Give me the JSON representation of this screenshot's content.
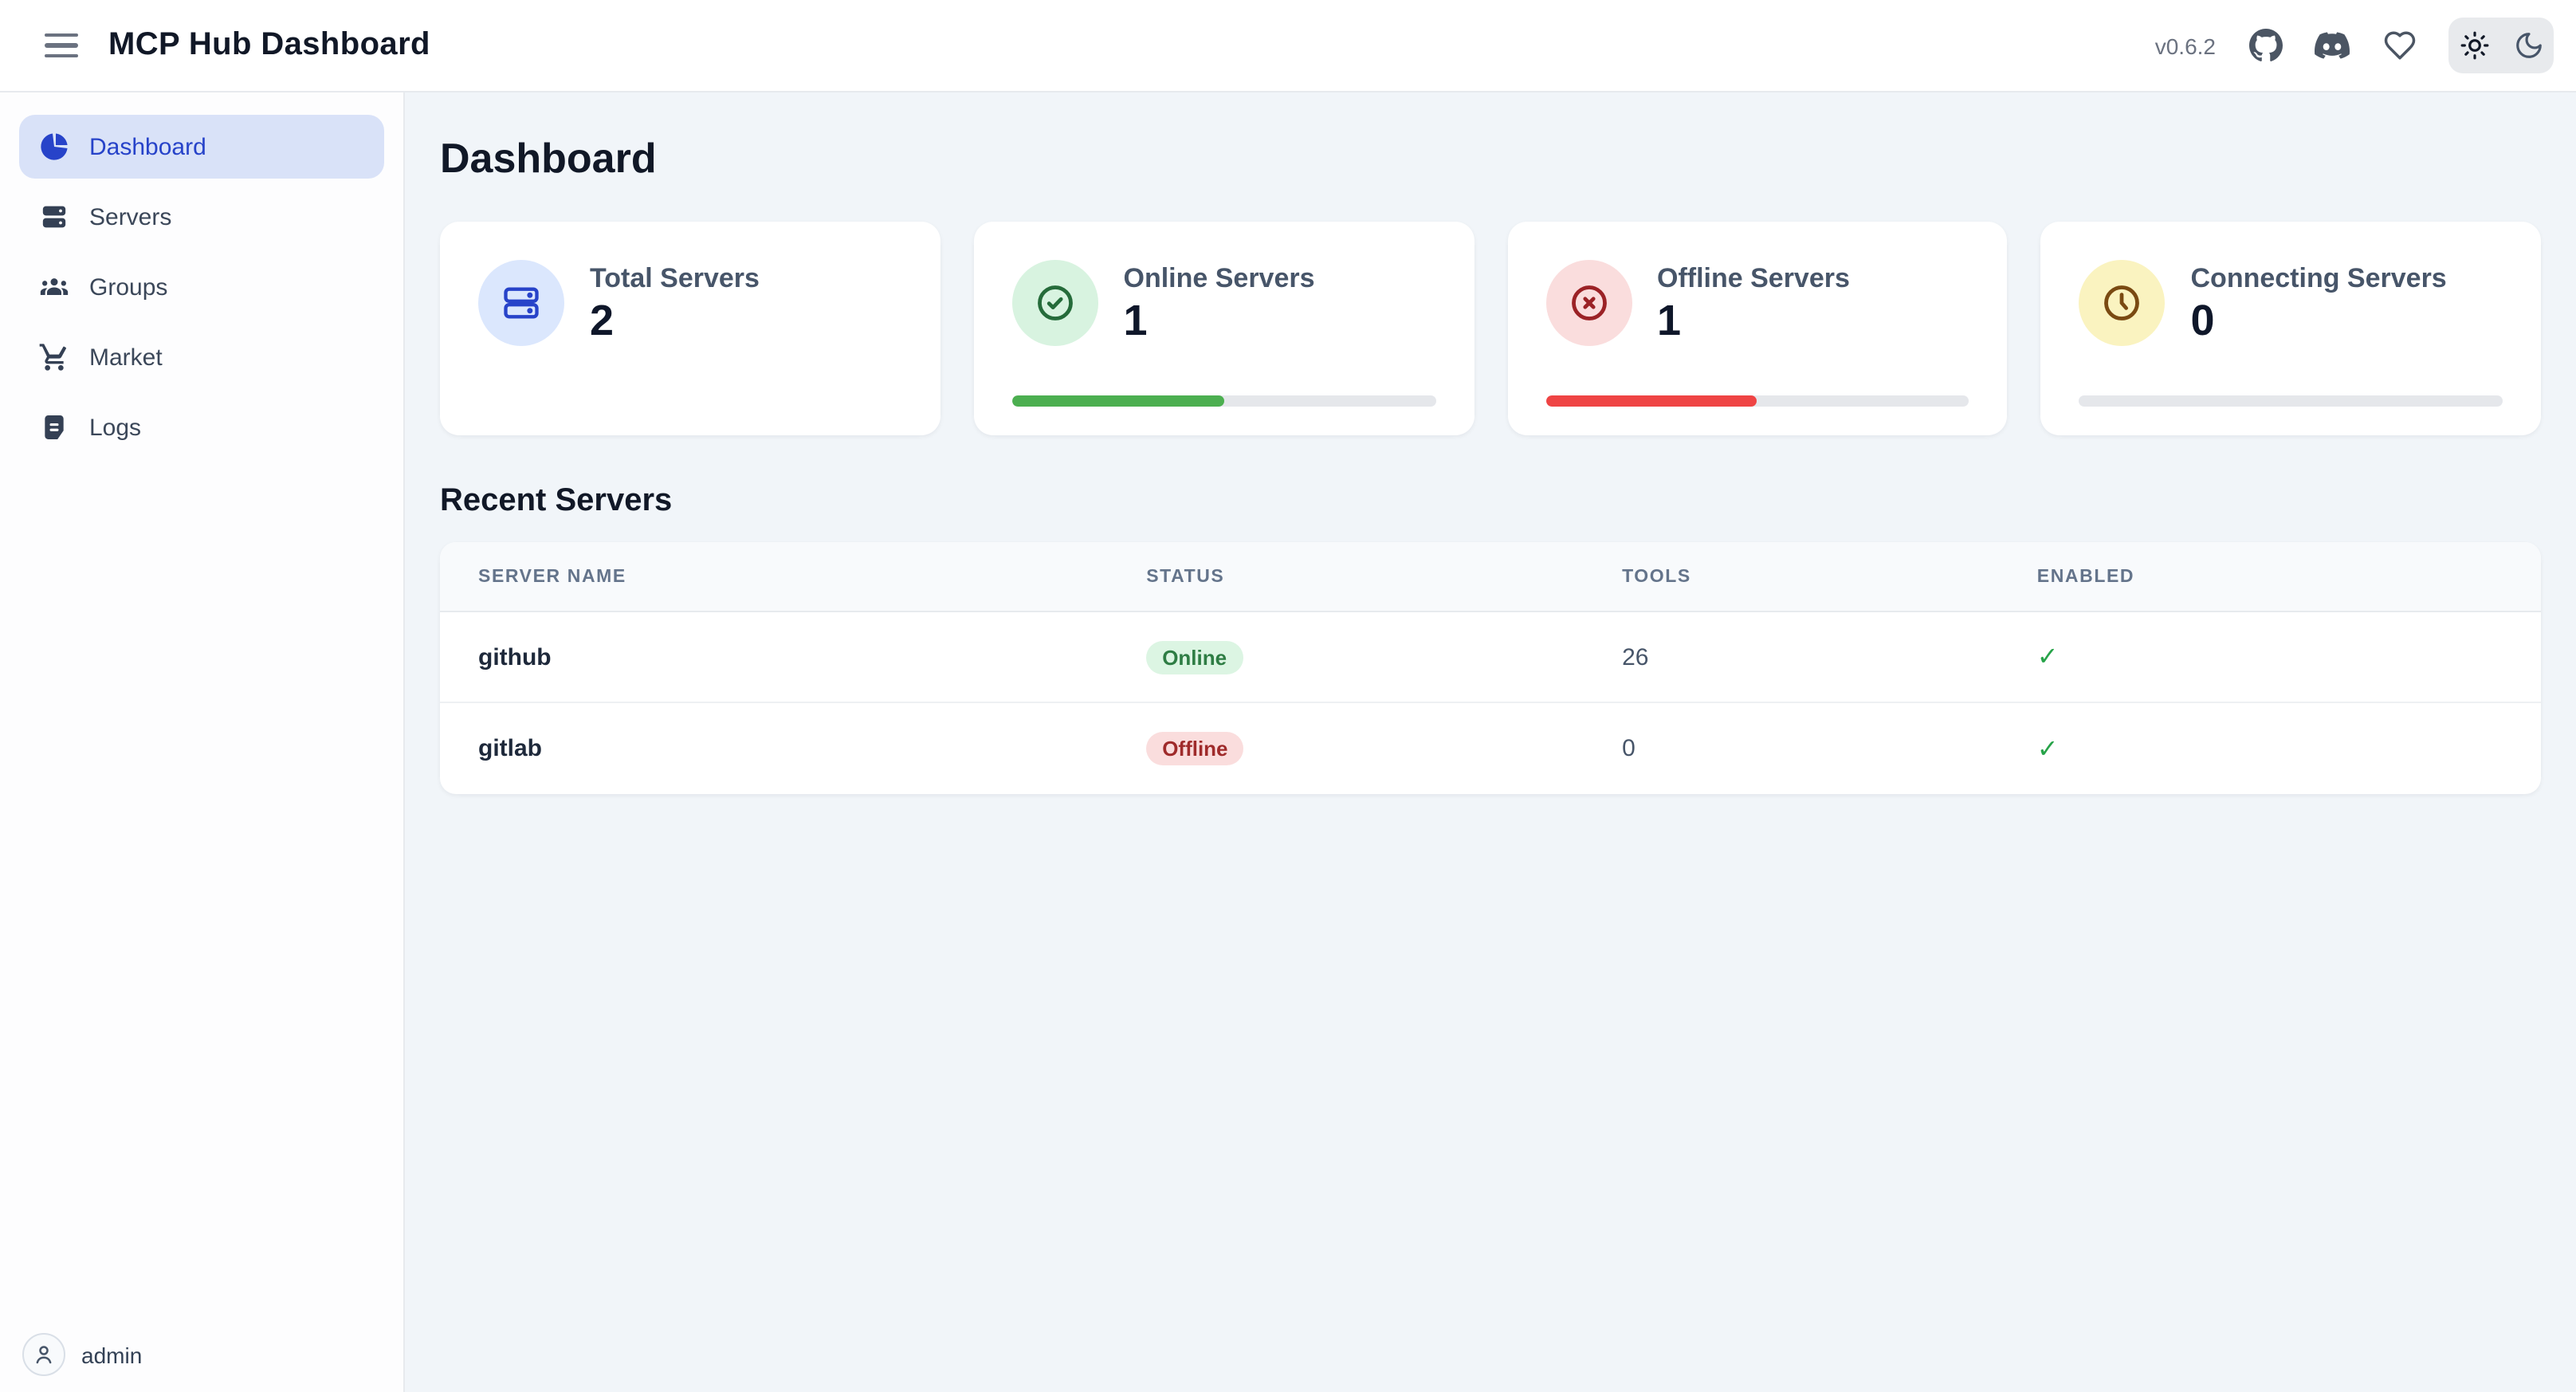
{
  "header": {
    "title": "MCP Hub Dashboard",
    "version": "v0.6.2",
    "icons": {
      "menu": "hamburger",
      "github": "github-logo",
      "discord": "discord-logo",
      "sponsor": "heart",
      "theme_light": "sun",
      "theme_dark": "moon"
    }
  },
  "sidebar": {
    "items": [
      {
        "label": "Dashboard",
        "icon": "pie-chart",
        "active": true
      },
      {
        "label": "Servers",
        "icon": "server",
        "active": false
      },
      {
        "label": "Groups",
        "icon": "users",
        "active": false
      },
      {
        "label": "Market",
        "icon": "shopping-cart",
        "active": false
      },
      {
        "label": "Logs",
        "icon": "document",
        "active": false
      }
    ],
    "user": {
      "name": "admin",
      "icon": "person"
    }
  },
  "main": {
    "page_title": "Dashboard",
    "stats": [
      {
        "label": "Total Servers",
        "value": "2",
        "icon": "server-outline",
        "progress": null
      },
      {
        "label": "Online Servers",
        "value": "1",
        "icon": "circle-check",
        "progress": 50
      },
      {
        "label": "Offline Servers",
        "value": "1",
        "icon": "circle-x",
        "progress": 50
      },
      {
        "label": "Connecting Servers",
        "value": "0",
        "icon": "clock",
        "progress": 0
      }
    ],
    "recent": {
      "title": "Recent Servers",
      "columns": [
        "Server Name",
        "Status",
        "Tools",
        "Enabled"
      ],
      "rows": [
        {
          "name": "github",
          "status": "Online",
          "tools": "26",
          "enabled": "✓"
        },
        {
          "name": "gitlab",
          "status": "Offline",
          "tools": "0",
          "enabled": "✓"
        }
      ]
    }
  },
  "colors": {
    "accent_blue": "#2743c9",
    "active_item_bg": "#d9e2f8",
    "main_bg": "#f1f5f9",
    "progress_green": "#4caf50",
    "progress_red": "#ef4444",
    "online_badge_bg": "#dcf5e3",
    "online_badge_text": "#2e7d44",
    "offline_badge_bg": "#fadddd",
    "offline_badge_text": "#9f2b2b",
    "check_green": "#27a349",
    "icon_circle_blue": "#dbe7fd",
    "icon_circle_green": "#d8f3e0",
    "icon_circle_red": "#fadddd",
    "icon_circle_yellow": "#faf3c0"
  }
}
